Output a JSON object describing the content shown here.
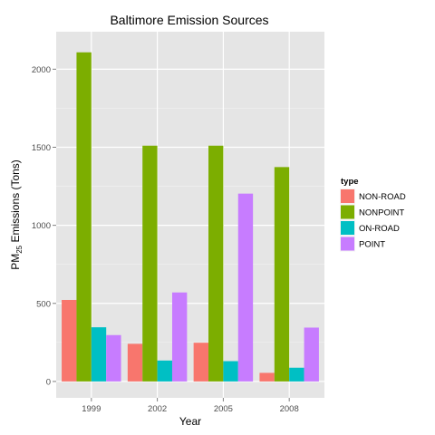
{
  "chart_data": {
    "type": "bar",
    "title": "Baltimore Emission Sources",
    "xlabel": "Year",
    "ylabel": {
      "prefix": "PM",
      "subscript": "25",
      "suffix": " Emissions (Tons)"
    },
    "categories": [
      "1999",
      "2002",
      "2005",
      "2008"
    ],
    "series": [
      {
        "name": "NON-ROAD",
        "color": "#F8766D",
        "values": [
          522,
          241,
          248,
          55
        ]
      },
      {
        "name": "NONPOINT",
        "color": "#7CAE00",
        "values": [
          2108,
          1510,
          1510,
          1373
        ]
      },
      {
        "name": "ON-ROAD",
        "color": "#00BFC4",
        "values": [
          347,
          134,
          130,
          88
        ]
      },
      {
        "name": "POINT",
        "color": "#C77CFF",
        "values": [
          297,
          570,
          1203,
          345
        ]
      }
    ],
    "ylim": [
      -105,
      2240
    ],
    "yticks": [
      0,
      500,
      1000,
      1500,
      2000
    ],
    "legend": {
      "title": "type",
      "position": "right"
    },
    "grid": true,
    "panel_background": "#E5E5E5",
    "grid_color": "#FFFFFF"
  }
}
